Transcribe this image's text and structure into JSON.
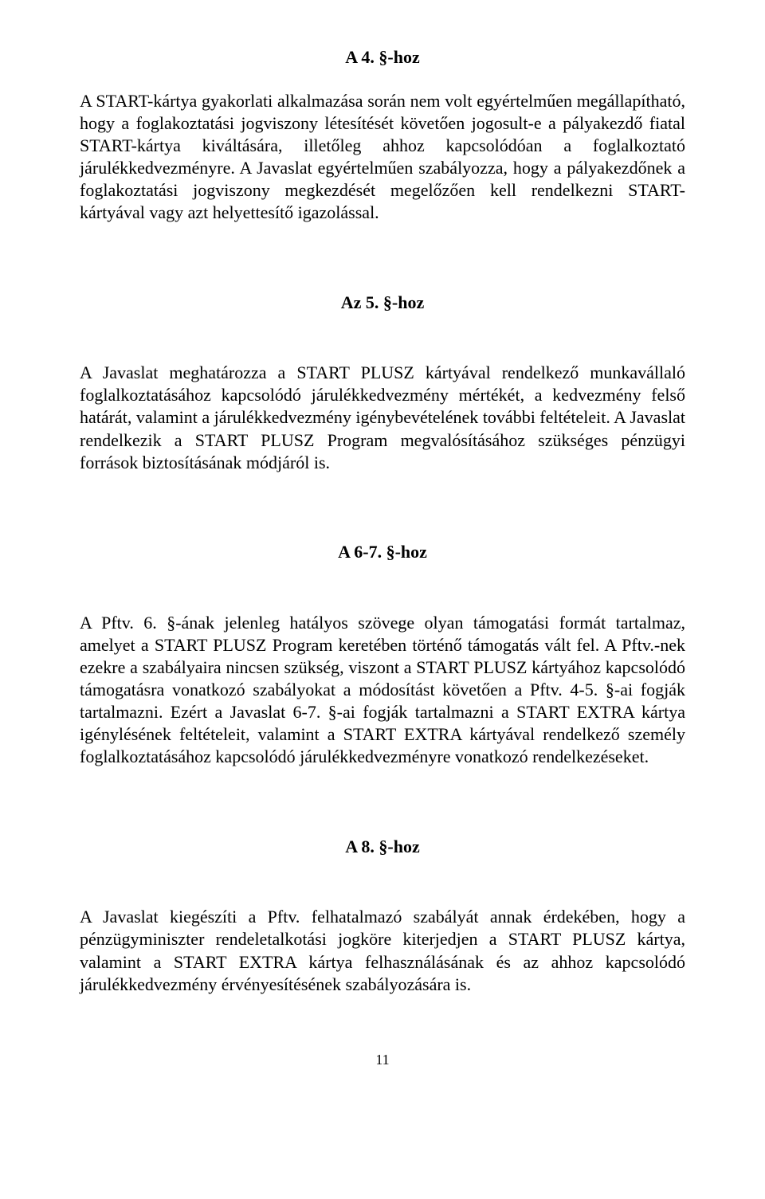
{
  "section4": {
    "heading": "A 4. §-hoz",
    "p1": "A START-kártya gyakorlati alkalmazása során nem volt egyértelműen megállapítható, hogy a foglakoztatási jogviszony létesítését követően jogosult-e a pályakezdő fiatal START-kártya kiváltására, illetőleg ahhoz kapcsolódóan a foglalkoztató járulékkedvezményre. A Javaslat egyértelműen szabályozza, hogy a pályakezdőnek a foglakoztatási jogviszony megkezdését megelőzően kell rendelkezni START-kártyával vagy azt helyettesítő igazolással."
  },
  "section5": {
    "heading": "Az 5. §-hoz",
    "p1": "A Javaslat meghatározza a START PLUSZ kártyával rendelkező munkavállaló foglalkoztatásához kapcsolódó járulékkedvezmény mértékét, a kedvezmény felső határát, valamint a járulékkedvezmény igénybevételének további feltételeit. A Javaslat rendelkezik a START PLUSZ Program megvalósításához szükséges pénzügyi források biztosításának módjáról is."
  },
  "section67": {
    "heading": "A 6-7. §-hoz",
    "p1": "A Pftv. 6. §-ának jelenleg hatályos szövege olyan támogatási formát tartalmaz, amelyet a START PLUSZ Program keretében történő támogatás vált fel. A Pftv.-nek ezekre a szabályaira nincsen szükség, viszont a START PLUSZ kártyához kapcsolódó támogatásra vonatkozó szabályokat a módosítást követően a Pftv.  4-5. §-ai fogják tartalmazni. Ezért a Javaslat 6-7. §-ai fogják tartalmazni a START EXTRA kártya igénylésének feltételeit, valamint a START EXTRA kártyával rendelkező személy foglalkoztatásához kapcsolódó járulékkedvezményre vonatkozó rendelkezéseket."
  },
  "section8": {
    "heading": "A 8. §-hoz",
    "p1": "A Javaslat kiegészíti a Pftv. felhatalmazó szabályát annak érdekében, hogy a pénzügyminiszter rendeletalkotási jogköre kiterjedjen a START PLUSZ kártya, valamint a START EXTRA kártya felhasználásának és az ahhoz kapcsolódó járulékkedvezmény érvényesítésének szabályozására is."
  },
  "pagenum": "11"
}
